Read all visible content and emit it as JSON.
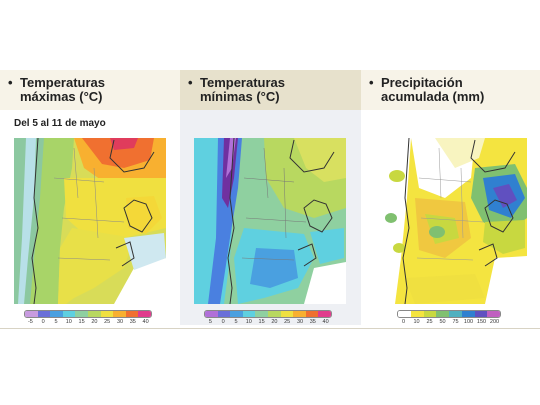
{
  "panels": [
    {
      "title_line1": "Temperaturas",
      "title_line2": "máximas (°C)",
      "scale": {
        "ticks": [
          "-5",
          "0",
          "5",
          "10",
          "15",
          "20",
          "25",
          "30",
          "35",
          "40"
        ],
        "colors": [
          "#c89be0",
          "#6a6fd8",
          "#4aa0e0",
          "#5fd0e0",
          "#8fd0a0",
          "#b8d860",
          "#f0e040",
          "#f8b030",
          "#f07030",
          "#e03c8c"
        ]
      }
    },
    {
      "title_line1": "Temperaturas",
      "title_line2": "mínimas (°C)",
      "scale": {
        "ticks": [
          "5",
          "0",
          "5",
          "10",
          "15",
          "20",
          "25",
          "30",
          "35",
          "40"
        ],
        "colors": [
          "#b070d8",
          "#6a6fd8",
          "#4aa0e0",
          "#5fd0e0",
          "#8fd0a0",
          "#b8d860",
          "#f0e040",
          "#f8b030",
          "#f07030",
          "#e03c8c"
        ]
      }
    },
    {
      "title_line1": "Precipitación",
      "title_line2": "acumulada (mm)",
      "scale": {
        "ticks": [
          "0",
          "10",
          "25",
          "50",
          "75",
          "100",
          "150",
          "200"
        ],
        "colors": [
          "#ffffff",
          "#f4e440",
          "#c8d840",
          "#80c070",
          "#50b0c0",
          "#3080d0",
          "#6050c0",
          "#c060c0"
        ]
      }
    }
  ],
  "date_label": "Del 5 al 11 de mayo",
  "colors": {
    "header_light": "#f7f3e8",
    "header_dark": "#e7e1cc"
  }
}
